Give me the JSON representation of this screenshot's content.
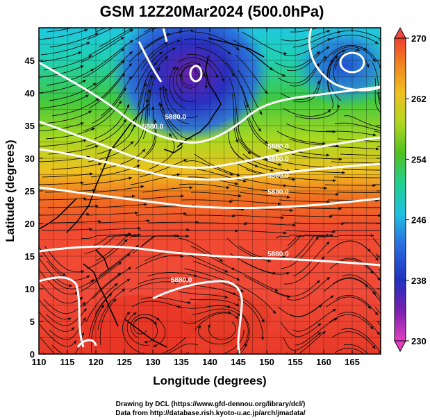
{
  "title": "GSM 12Z20Mar2024 (500.0hPa)",
  "footer": {
    "line1": "Drawing by DCL (https://www.gfd-dennou.org/library/dcl/)",
    "line2": "Data from http://database.rish.kyoto-u.ac.jp/arch/jmadata/"
  },
  "chart_data": {
    "type": "heatmap",
    "title": "GSM 12Z20Mar2024 (500.0hPa)",
    "xlabel": "Longitude (degrees)",
    "ylabel": "Latitude  (degrees)",
    "xlim": [
      110,
      170
    ],
    "ylim": [
      0,
      50
    ],
    "x_ticks": [
      "110",
      "115",
      "120",
      "125",
      "130",
      "135",
      "140",
      "145",
      "150",
      "155",
      "160",
      "165"
    ],
    "y_ticks": [
      "0",
      "5",
      "10",
      "15",
      "20",
      "25",
      "30",
      "35",
      "40",
      "45"
    ],
    "colorbar": {
      "min": 230,
      "max": 270,
      "ticks": [
        "230",
        "238",
        "246",
        "254",
        "262",
        "270"
      ],
      "colors": [
        "#e040c0",
        "#7a20b0",
        "#2030c0",
        "#2a70e0",
        "#20c0e0",
        "#20d090",
        "#50c020",
        "#b0d820",
        "#f0c020",
        "#f08020",
        "#f04030"
      ]
    },
    "contour_labels": [
      {
        "text": "5880.0",
        "lon": 134,
        "lat": 36
      },
      {
        "text": "5880.0",
        "lon": 130,
        "lat": 34.5
      },
      {
        "text": "5880.0",
        "lon": 152,
        "lat": 31.5
      },
      {
        "text": "5880.0",
        "lon": 152,
        "lat": 29.5
      },
      {
        "text": "5880.0",
        "lon": 152,
        "lat": 27
      },
      {
        "text": "5880.0",
        "lon": 152,
        "lat": 24.5
      },
      {
        "text": "5880.0",
        "lon": 152,
        "lat": 15
      },
      {
        "text": "5880.0",
        "lon": 135,
        "lat": 11
      }
    ]
  }
}
